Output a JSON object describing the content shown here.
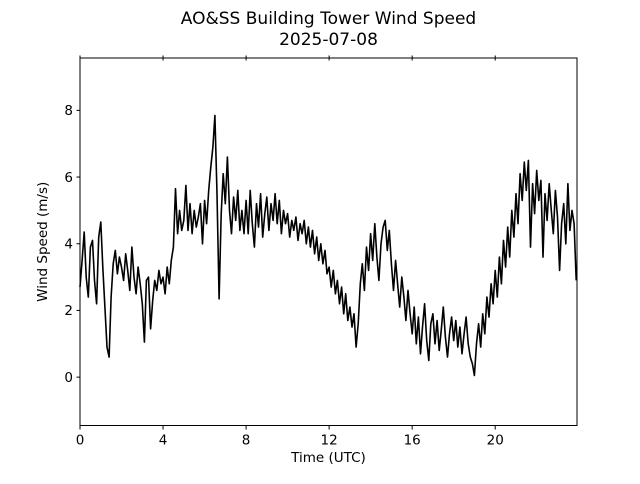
{
  "figure": {
    "background": "#ffffff"
  },
  "chart_data": {
    "type": "line",
    "title": "AO&SS Building Tower Wind Speed",
    "subtitle": "2025-07-08",
    "xlabel": "Time (UTC)",
    "ylabel": "Wind Speed (m/s)",
    "xlim": [
      0,
      23.94
    ],
    "ylim": [
      -1.45,
      9.57
    ],
    "xticks": [
      0,
      4,
      8,
      12,
      16,
      20
    ],
    "yticks": [
      0,
      2,
      4,
      6,
      8
    ],
    "grid": false,
    "legend": "none",
    "line_color": "#000000",
    "text_color": "#000000",
    "series": [
      {
        "name": "Wind Speed (m/s)",
        "x_start": 0,
        "x_step": 0.1,
        "x_units": "hours UTC",
        "values": [
          2.7,
          3.5,
          4.35,
          3.0,
          2.4,
          3.9,
          4.1,
          2.9,
          2.2,
          4.2,
          4.65,
          3.3,
          2.1,
          0.9,
          0.6,
          2.4,
          3.4,
          3.8,
          3.1,
          3.6,
          3.3,
          2.9,
          3.7,
          3.2,
          2.6,
          3.9,
          3.0,
          2.5,
          3.3,
          2.8,
          2.2,
          1.05,
          2.9,
          3.0,
          1.45,
          2.3,
          2.9,
          2.6,
          3.2,
          2.8,
          3.0,
          2.5,
          3.3,
          2.8,
          3.5,
          3.9,
          5.65,
          4.3,
          5.0,
          4.4,
          4.7,
          5.75,
          4.4,
          5.2,
          4.3,
          5.0,
          4.5,
          4.8,
          5.2,
          4.0,
          5.3,
          4.6,
          5.6,
          6.3,
          6.9,
          7.85,
          5.5,
          2.35,
          4.9,
          6.1,
          5.2,
          6.6,
          5.0,
          4.3,
          5.4,
          4.7,
          5.6,
          4.4,
          5.0,
          4.3,
          5.3,
          4.3,
          5.6,
          4.6,
          3.9,
          5.2,
          4.5,
          5.5,
          4.2,
          4.9,
          5.4,
          4.4,
          5.2,
          4.7,
          5.5,
          4.6,
          5.3,
          4.3,
          5.0,
          4.6,
          4.9,
          4.2,
          4.7,
          4.4,
          4.8,
          4.1,
          4.6,
          4.3,
          4.7,
          4.0,
          4.5,
          3.9,
          4.4,
          3.7,
          4.2,
          3.5,
          4.0,
          3.4,
          3.8,
          3.1,
          3.3,
          2.7,
          3.2,
          2.5,
          2.9,
          2.2,
          2.7,
          1.9,
          2.5,
          1.7,
          2.1,
          1.5,
          1.9,
          0.9,
          1.6,
          2.8,
          3.4,
          2.6,
          3.9,
          3.2,
          4.3,
          3.5,
          4.6,
          3.6,
          2.9,
          4.0,
          4.5,
          4.7,
          3.8,
          4.4,
          3.4,
          2.6,
          3.5,
          2.8,
          2.1,
          3.0,
          2.4,
          1.7,
          2.6,
          1.9,
          1.3,
          2.1,
          1.0,
          1.8,
          0.7,
          1.5,
          2.2,
          1.1,
          0.5,
          1.6,
          1.9,
          1.0,
          1.7,
          0.8,
          1.4,
          2.1,
          1.2,
          0.6,
          1.3,
          1.8,
          1.1,
          1.7,
          0.9,
          1.5,
          0.7,
          1.3,
          1.8,
          1.0,
          0.6,
          0.4,
          0.05,
          1.0,
          1.6,
          0.9,
          1.9,
          1.3,
          2.4,
          1.8,
          2.8,
          2.2,
          3.2,
          2.4,
          3.6,
          2.8,
          4.1,
          3.3,
          4.5,
          3.6,
          5.0,
          4.2,
          5.5,
          4.6,
          6.1,
          5.3,
          6.45,
          5.6,
          6.5,
          3.9,
          5.8,
          4.9,
          6.2,
          5.3,
          5.9,
          3.6,
          5.5,
          4.7,
          5.8,
          5.0,
          4.3,
          5.6,
          4.8,
          3.2,
          4.6,
          5.2,
          4.0,
          5.8,
          4.4,
          5.0,
          4.6,
          2.9
        ]
      }
    ]
  }
}
